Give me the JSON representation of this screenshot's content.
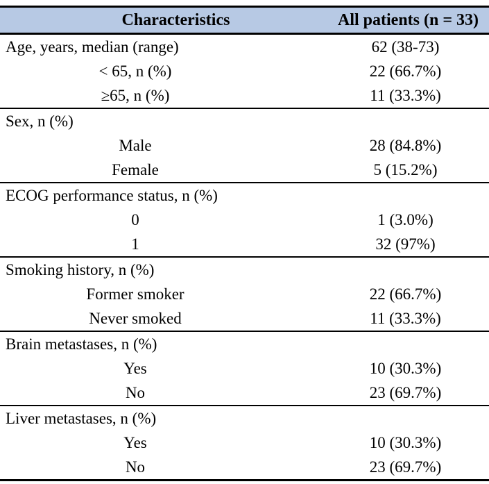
{
  "table": {
    "title": "patient-characteristics",
    "colors": {
      "header_bg": "#b7c9e4",
      "border": "#000000",
      "text": "#000000"
    },
    "header": {
      "col1": "Characteristics",
      "col2": "All patients (n = 33)"
    },
    "rows": [
      {
        "label": "Age, years, median (range)",
        "value": "62 (38-73)",
        "type": "group"
      },
      {
        "label": "< 65, n (%)",
        "value": "22 (66.7%)",
        "type": "sub"
      },
      {
        "label": "≥65, n (%)",
        "value": "11 (33.3%)",
        "type": "sub"
      },
      {
        "label": "Sex, n (%)",
        "value": "",
        "type": "group",
        "section_start": true
      },
      {
        "label": "Male",
        "value": "28 (84.8%)",
        "type": "sub"
      },
      {
        "label": "Female",
        "value": "5 (15.2%)",
        "type": "sub"
      },
      {
        "label": "ECOG performance status, n (%)",
        "value": "",
        "type": "group",
        "section_start": true
      },
      {
        "label": "0",
        "value": "1 (3.0%)",
        "type": "sub"
      },
      {
        "label": "1",
        "value": "32 (97%)",
        "type": "sub"
      },
      {
        "label": "Smoking history, n (%)",
        "value": "",
        "type": "group",
        "section_start": true
      },
      {
        "label": "Former smoker",
        "value": "22 (66.7%)",
        "type": "sub"
      },
      {
        "label": "Never smoked",
        "value": "11 (33.3%)",
        "type": "sub"
      },
      {
        "label": "Brain metastases, n (%)",
        "value": "",
        "type": "group",
        "section_start": true
      },
      {
        "label": "Yes",
        "value": "10 (30.3%)",
        "type": "sub"
      },
      {
        "label": "No",
        "value": "23 (69.7%)",
        "type": "sub"
      },
      {
        "label": "Liver metastases, n (%)",
        "value": "",
        "type": "group",
        "section_start": true
      },
      {
        "label": "Yes",
        "value": "10 (30.3%)",
        "type": "sub"
      },
      {
        "label": "No",
        "value": "23 (69.7%)",
        "type": "sub"
      }
    ]
  }
}
